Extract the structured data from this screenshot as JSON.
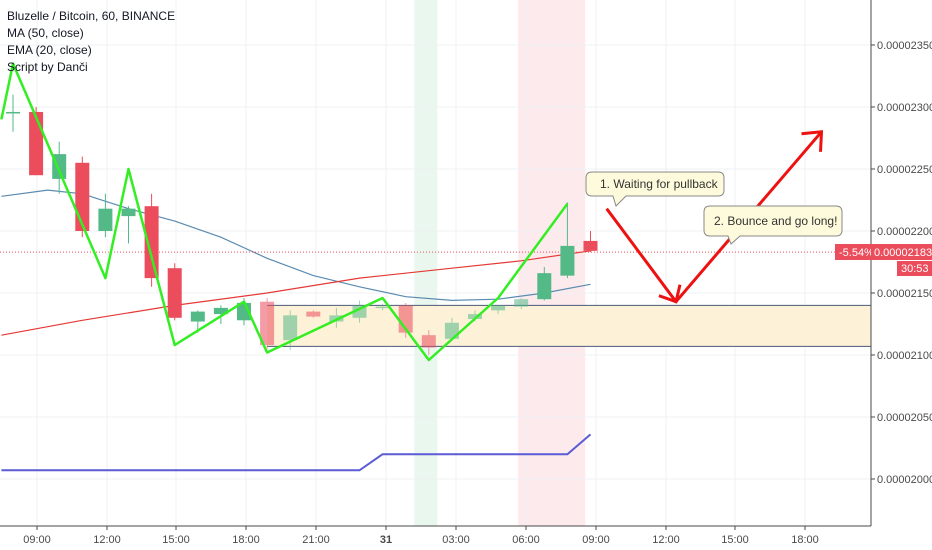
{
  "legend": {
    "title": "Bluzelle / Bitcoin, 60, BINANCE",
    "ma": "MA (50, close)",
    "ema": "EMA (20, close)",
    "script": "Script by Danči"
  },
  "annotations": {
    "note1": "1. Waiting for pullback",
    "note2": "2. Bounce and go long!"
  },
  "price_tags": {
    "change": "-5.54%",
    "price": "0.00002183",
    "countdown": "30:53"
  },
  "colors": {
    "up": "#53b987",
    "down": "#eb4d5c",
    "zigzag": "#33ee22",
    "ma": "#e53935",
    "ema": "#5b8bb0",
    "lower": "#5b5bd6",
    "zone": "#fdf1d7",
    "arrows": "#ee1111"
  },
  "chart_data": {
    "type": "candlestick",
    "title": "Bluzelle / Bitcoin, 60, BINANCE",
    "x_ticks": [
      "09:00",
      "12:00",
      "15:00",
      "18:00",
      "21:00",
      "31",
      "03:00",
      "06:00",
      "09:00",
      "12:00",
      "15:00",
      "18:00"
    ],
    "y_ticks": [
      "0.00002350",
      "0.00002300",
      "0.00002250",
      "0.00002200",
      "0.00002150",
      "0.00002100",
      "0.00002050",
      "0.00002000"
    ],
    "candles": [
      {
        "o": 22.96,
        "h": 23.1,
        "l": 22.8,
        "c": 22.96
      },
      {
        "o": 22.96,
        "h": 23.0,
        "l": 22.45,
        "c": 22.45
      },
      {
        "o": 22.42,
        "h": 22.72,
        "l": 22.3,
        "c": 22.62
      },
      {
        "o": 22.55,
        "h": 22.6,
        "l": 21.95,
        "c": 22.0
      },
      {
        "o": 22.0,
        "h": 22.3,
        "l": 21.95,
        "c": 22.18
      },
      {
        "o": 22.12,
        "h": 22.2,
        "l": 21.9,
        "c": 22.18
      },
      {
        "o": 22.2,
        "h": 22.3,
        "l": 21.55,
        "c": 21.62
      },
      {
        "o": 21.7,
        "h": 21.74,
        "l": 21.28,
        "c": 21.3
      },
      {
        "o": 21.27,
        "h": 21.36,
        "l": 21.18,
        "c": 21.35
      },
      {
        "o": 21.33,
        "h": 21.4,
        "l": 21.25,
        "c": 21.38
      },
      {
        "o": 21.28,
        "h": 21.46,
        "l": 21.24,
        "c": 21.42
      },
      {
        "o": 21.43,
        "h": 21.46,
        "l": 21.05,
        "c": 21.08
      },
      {
        "o": 21.12,
        "h": 21.36,
        "l": 21.04,
        "c": 21.32
      },
      {
        "o": 21.35,
        "h": 21.36,
        "l": 21.3,
        "c": 21.31
      },
      {
        "o": 21.27,
        "h": 21.38,
        "l": 21.22,
        "c": 21.32
      },
      {
        "o": 21.3,
        "h": 21.44,
        "l": 21.26,
        "c": 21.4
      },
      {
        "o": 21.38,
        "h": 21.41,
        "l": 21.36,
        "c": 21.39
      },
      {
        "o": 21.4,
        "h": 21.42,
        "l": 21.14,
        "c": 21.18
      },
      {
        "o": 21.16,
        "h": 21.2,
        "l": 21.0,
        "c": 21.06
      },
      {
        "o": 21.13,
        "h": 21.3,
        "l": 21.12,
        "c": 21.26
      },
      {
        "o": 21.29,
        "h": 21.36,
        "l": 21.27,
        "c": 21.33
      },
      {
        "o": 21.36,
        "h": 21.38,
        "l": 21.33,
        "c": 21.4
      },
      {
        "o": 21.39,
        "h": 21.46,
        "l": 21.37,
        "c": 21.45
      },
      {
        "o": 21.45,
        "h": 21.71,
        "l": 21.44,
        "c": 21.66
      },
      {
        "o": 21.64,
        "h": 22.23,
        "l": 21.62,
        "c": 21.88
      },
      {
        "o": 21.92,
        "h": 22.0,
        "l": 21.83,
        "c": 21.84
      }
    ],
    "price_unit_note": "",
    "ma50": [
      [
        -0.5,
        21.16
      ],
      [
        3,
        21.28
      ],
      [
        7,
        21.4
      ],
      [
        11,
        21.5
      ],
      [
        15,
        21.62
      ],
      [
        19,
        21.7
      ],
      [
        22,
        21.76
      ],
      [
        25,
        21.84
      ]
    ],
    "ema20": [
      [
        -0.5,
        22.28
      ],
      [
        1.5,
        22.33
      ],
      [
        3,
        22.3
      ],
      [
        5,
        22.18
      ],
      [
        7,
        22.08
      ],
      [
        9,
        21.95
      ],
      [
        11,
        21.78
      ],
      [
        13,
        21.64
      ],
      [
        15,
        21.55
      ],
      [
        17,
        21.47
      ],
      [
        19,
        21.44
      ],
      [
        21,
        21.45
      ],
      [
        23,
        21.5
      ],
      [
        25,
        21.57
      ]
    ],
    "zigzag": [
      [
        -0.5,
        22.9
      ],
      [
        0,
        23.35
      ],
      [
        4,
        21.62
      ],
      [
        5,
        22.5
      ],
      [
        7,
        21.08
      ],
      [
        10,
        21.43
      ],
      [
        11,
        21.02
      ],
      [
        16,
        21.46
      ],
      [
        18,
        20.96
      ],
      [
        21,
        21.46
      ],
      [
        24,
        22.22
      ]
    ],
    "zone": {
      "x_from": 11,
      "x_to": 36,
      "top": 21.4,
      "bottom": 21.07
    },
    "lower_line": [
      [
        -0.5,
        20.07
      ],
      [
        15,
        20.07
      ],
      [
        16,
        20.2
      ],
      [
        24,
        20.2
      ],
      [
        25,
        20.36
      ]
    ],
    "arrow_down_from": [
      25.7,
      22.18
    ],
    "arrow_down_to": [
      28.7,
      21.43
    ],
    "arrow_up_to": [
      35,
      22.8
    ],
    "current_price": 21.83,
    "vertical_bands": [
      {
        "x": 17.5,
        "w": 1,
        "color": "green"
      },
      {
        "x": 22,
        "w": 2.9,
        "color": "red"
      }
    ]
  }
}
